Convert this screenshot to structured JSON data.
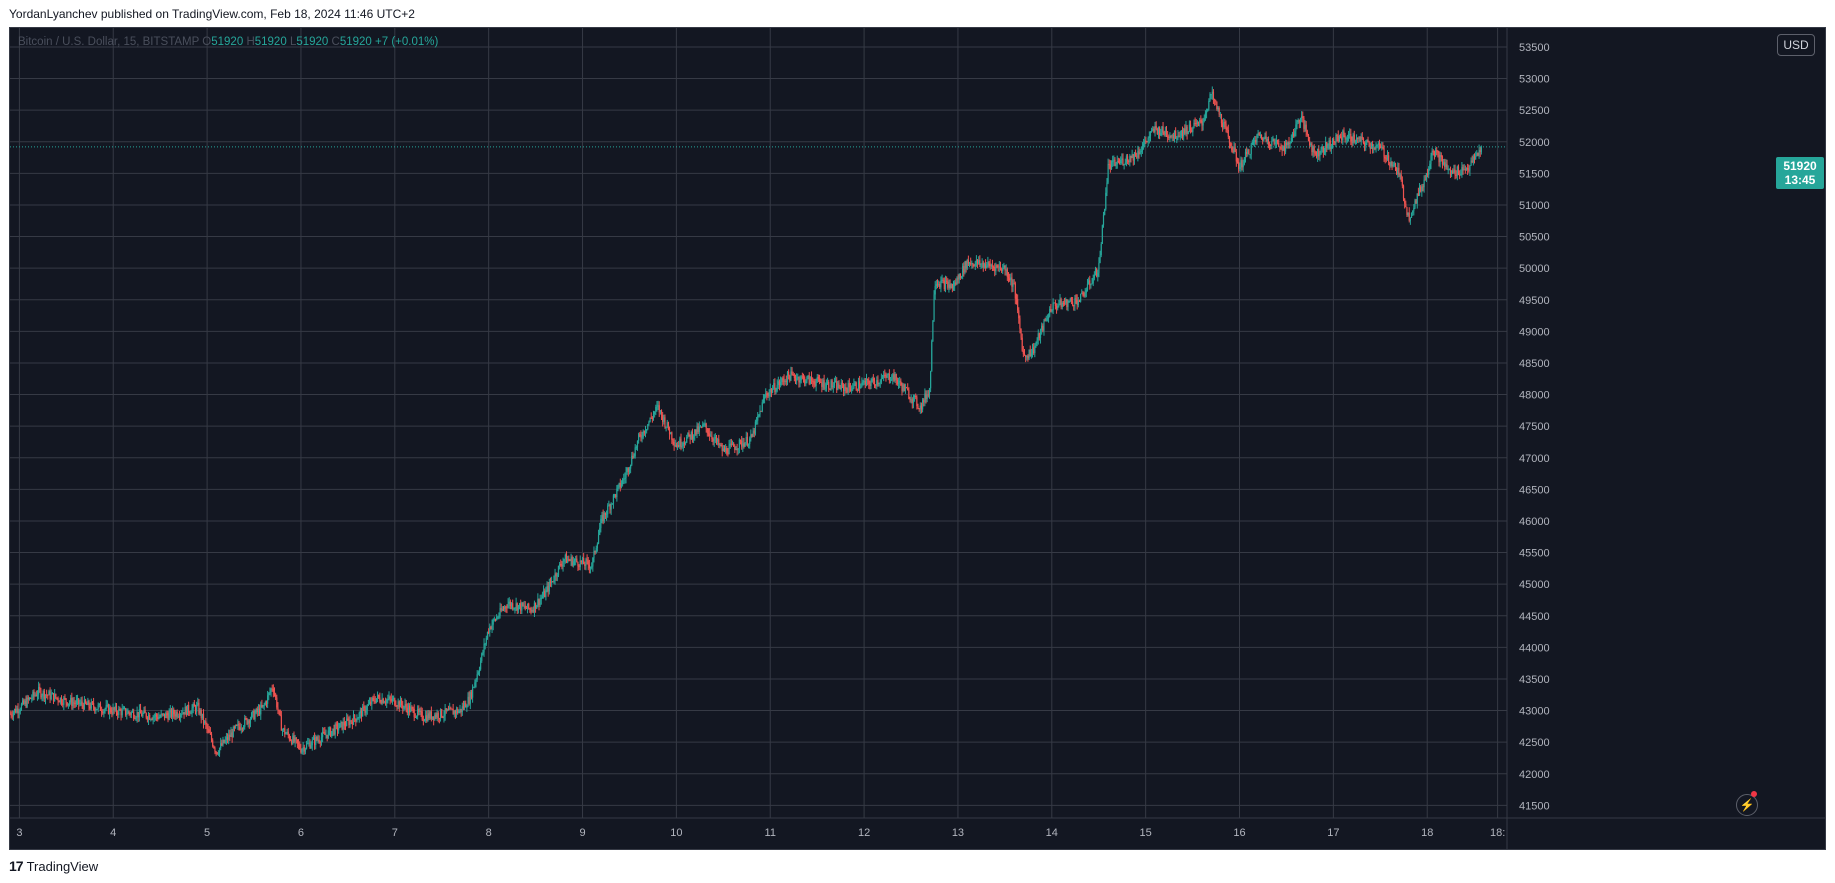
{
  "header": {
    "publish_text": "YordanLyanchev published on TradingView.com, Feb 18, 2024 11:46 UTC+2"
  },
  "legend": {
    "symbol_text": "Bitcoin / U.S. Dollar, 15, BITSTAMP",
    "o_label": "O",
    "o_value": "51920",
    "h_label": "H",
    "h_value": "51920",
    "l_label": "L",
    "l_value": "51920",
    "c_label": "C",
    "c_value": "51920",
    "change": "+7 (+0.01%)"
  },
  "currency_button": "USD",
  "price_tag": {
    "price": "51920",
    "countdown": "13:45"
  },
  "footer": {
    "brand": "TradingView",
    "logo": "17"
  },
  "colors": {
    "background": "#131722",
    "grid": "#363a45",
    "up": "#26a69a",
    "down": "#ef5350",
    "axis_text": "#b2b5be"
  },
  "icons": {
    "flash": "flash-icon"
  },
  "chart_data": {
    "type": "candlestick",
    "title": "Bitcoin / U.S. Dollar, 15, BITSTAMP",
    "y_ticks": [
      41500,
      42000,
      42500,
      43000,
      43500,
      44000,
      44500,
      45000,
      45500,
      46000,
      46500,
      47000,
      47500,
      48000,
      48500,
      49000,
      49500,
      50000,
      50500,
      51000,
      51500,
      52000,
      52500,
      53000,
      53500
    ],
    "ylim": [
      41300,
      53800
    ],
    "x_ticks": [
      "3",
      "4",
      "5",
      "6",
      "7",
      "8",
      "9",
      "10",
      "11",
      "12",
      "13",
      "14",
      "15",
      "16",
      "17",
      "18",
      "18:"
    ],
    "x_tick_days": [
      3,
      4,
      5,
      6,
      7,
      8,
      9,
      10,
      11,
      12,
      13,
      14,
      15,
      16,
      17,
      18,
      18.75
    ],
    "xlim_days": [
      2.9,
      18.85
    ],
    "last_price": 51920,
    "grid": true,
    "price_path": [
      [
        2.9,
        42950
      ],
      [
        3.05,
        43100
      ],
      [
        3.2,
        43300
      ],
      [
        3.5,
        43150
      ],
      [
        4.0,
        43000
      ],
      [
        4.5,
        42900
      ],
      [
        4.9,
        43050
      ],
      [
        5.0,
        42700
      ],
      [
        5.1,
        42350
      ],
      [
        5.3,
        42700
      ],
      [
        5.6,
        43050
      ],
      [
        5.7,
        43400
      ],
      [
        5.8,
        42700
      ],
      [
        6.0,
        42400
      ],
      [
        6.3,
        42650
      ],
      [
        6.6,
        42900
      ],
      [
        6.8,
        43200
      ],
      [
        7.0,
        43150
      ],
      [
        7.3,
        42900
      ],
      [
        7.7,
        43000
      ],
      [
        7.8,
        43200
      ],
      [
        7.9,
        43700
      ],
      [
        8.0,
        44300
      ],
      [
        8.2,
        44700
      ],
      [
        8.45,
        44600
      ],
      [
        8.6,
        44850
      ],
      [
        8.8,
        45400
      ],
      [
        9.1,
        45300
      ],
      [
        9.2,
        46000
      ],
      [
        9.45,
        46700
      ],
      [
        9.6,
        47300
      ],
      [
        9.8,
        47800
      ],
      [
        10.0,
        47200
      ],
      [
        10.3,
        47500
      ],
      [
        10.5,
        47100
      ],
      [
        10.8,
        47300
      ],
      [
        10.95,
        48000
      ],
      [
        11.2,
        48300
      ],
      [
        11.5,
        48200
      ],
      [
        11.8,
        48100
      ],
      [
        12.1,
        48200
      ],
      [
        12.3,
        48300
      ],
      [
        12.6,
        47800
      ],
      [
        12.7,
        48100
      ],
      [
        12.75,
        49800
      ],
      [
        12.95,
        49700
      ],
      [
        13.1,
        50100
      ],
      [
        13.5,
        50000
      ],
      [
        13.6,
        49700
      ],
      [
        13.7,
        48600
      ],
      [
        13.8,
        48700
      ],
      [
        14.0,
        49400
      ],
      [
        14.3,
        49500
      ],
      [
        14.5,
        50000
      ],
      [
        14.6,
        51600
      ],
      [
        14.9,
        51800
      ],
      [
        15.1,
        52200
      ],
      [
        15.3,
        52100
      ],
      [
        15.6,
        52300
      ],
      [
        15.7,
        52750
      ],
      [
        15.9,
        52000
      ],
      [
        16.0,
        51600
      ],
      [
        16.2,
        52100
      ],
      [
        16.5,
        51900
      ],
      [
        16.65,
        52400
      ],
      [
        16.8,
        51800
      ],
      [
        17.1,
        52100
      ],
      [
        17.5,
        51900
      ],
      [
        17.7,
        51500
      ],
      [
        17.8,
        50800
      ],
      [
        18.0,
        51500
      ],
      [
        18.05,
        51900
      ],
      [
        18.25,
        51500
      ],
      [
        18.45,
        51600
      ],
      [
        18.58,
        51920
      ]
    ]
  }
}
